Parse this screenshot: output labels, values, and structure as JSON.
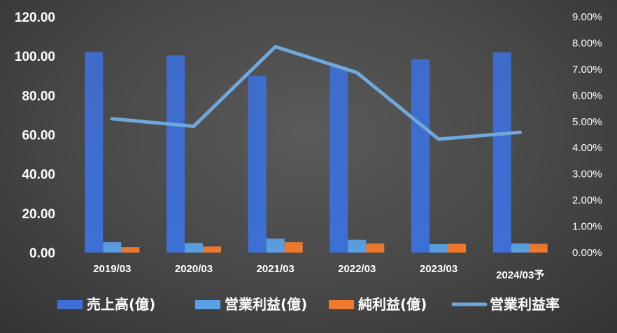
{
  "chart_data": {
    "type": "bar",
    "categories": [
      "2019/03",
      "2020/03",
      "2021/03",
      "2022/03",
      "2023/03",
      "2024/03予"
    ],
    "series": [
      {
        "name": "売上高(億)",
        "type": "bar",
        "axis": "left",
        "color": "#3d6fd6",
        "values": [
          102,
          100.3,
          89.9,
          94.7,
          98.4,
          101.9
        ]
      },
      {
        "name": "営業利益(億)",
        "type": "bar",
        "axis": "left",
        "color": "#5aa0e4",
        "values": [
          5.3,
          4.9,
          7.1,
          6.5,
          4.3,
          4.7
        ]
      },
      {
        "name": "純利益(億)",
        "type": "bar",
        "axis": "left",
        "color": "#f07a2c",
        "values": [
          2.8,
          3.1,
          5.3,
          4.6,
          4.5,
          4.5
        ]
      },
      {
        "name": "営業利益率",
        "type": "line",
        "axis": "right",
        "color": "#6fa8dc",
        "values": [
          0.0511,
          0.0482,
          0.0786,
          0.0687,
          0.0433,
          0.0459
        ]
      }
    ],
    "ylim": [
      0,
      120
    ],
    "y_ticks": [
      "0.00",
      "20.00",
      "40.00",
      "60.00",
      "80.00",
      "100.00",
      "120.00"
    ],
    "y2lim": [
      0,
      0.09
    ],
    "y2_ticks": [
      "0.00%",
      "1.00%",
      "2.00%",
      "3.00%",
      "4.00%",
      "5.00%",
      "6.00%",
      "7.00%",
      "8.00%",
      "9.00%"
    ],
    "title": "",
    "xlabel": "",
    "ylabel": "",
    "grid": false,
    "legend_position": "bottom"
  }
}
